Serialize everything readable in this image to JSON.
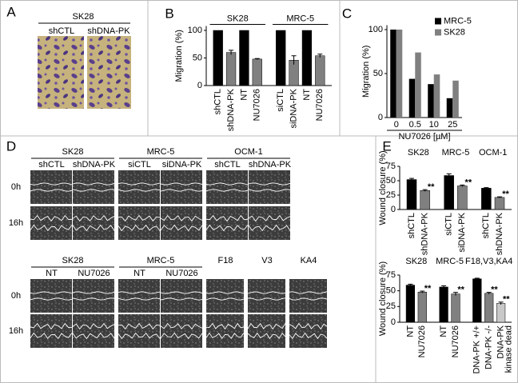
{
  "panel_labels": [
    "A",
    "B",
    "C",
    "D",
    "E"
  ],
  "panel_a": {
    "cell_line": "SK28",
    "conditions": [
      "shCTL",
      "shDNA-PK"
    ]
  },
  "panel_d": {
    "rows": [
      "0h",
      "16h"
    ],
    "top": [
      {
        "name": "SK28",
        "conditions": [
          "shCTL",
          "shDNA-PK"
        ]
      },
      {
        "name": "MRC-5",
        "conditions": [
          "siCTL",
          "siDNA-PK"
        ]
      },
      {
        "name": "OCM-1",
        "conditions": [
          "shCTL",
          "shDNA-PK"
        ]
      }
    ],
    "bottom": [
      {
        "name": "SK28",
        "conditions": [
          "NT",
          "NU7026"
        ]
      },
      {
        "name": "MRC-5",
        "conditions": [
          "NT",
          "NU7026"
        ]
      },
      {
        "name": "F18",
        "conditions": []
      },
      {
        "name": "V3",
        "conditions": []
      },
      {
        "name": "KA4",
        "conditions": []
      }
    ]
  },
  "chart_data": [
    {
      "type": "grouped-bar",
      "y_label": "Migration (%)",
      "ylim": [
        0,
        108
      ],
      "yticks": [
        0,
        50,
        100
      ],
      "groups": [
        {
          "name": "SK28",
          "categories": [
            "shCTL",
            "shDNA-PK",
            "NT",
            "NU7026"
          ],
          "values": [
            100,
            60,
            100,
            48
          ],
          "errors": [
            null,
            4,
            null,
            1
          ],
          "colors": [
            "#000000",
            "#808080",
            "#000000",
            "#808080"
          ]
        },
        {
          "name": "MRC-5",
          "categories": [
            "siCTL",
            "siDNA-PK",
            "NT",
            "NU7026"
          ],
          "values": [
            100,
            46,
            100,
            54
          ],
          "errors": [
            null,
            8,
            null,
            3
          ],
          "colors": [
            "#000000",
            "#808080",
            "#000000",
            "#808080"
          ]
        }
      ]
    },
    {
      "type": "bar",
      "y_label": "Migration (%)",
      "x_label": "NU7026 [µM]",
      "ylim": [
        0,
        105
      ],
      "yticks": [
        0,
        50,
        100
      ],
      "categories": [
        "0",
        "0.5",
        "10",
        "25"
      ],
      "legend": "upper right",
      "series": [
        {
          "name": "MRC-5",
          "color": "#000000",
          "values": [
            100,
            44,
            38,
            22
          ]
        },
        {
          "name": "SK28",
          "color": "#808080",
          "values": [
            100,
            74,
            49,
            42
          ]
        }
      ]
    },
    {
      "type": "grouped-bar",
      "y_label": "Wound closure (%)",
      "ylim": [
        0,
        75
      ],
      "yticks": [
        0,
        25,
        50,
        75
      ],
      "groups": [
        {
          "name": "SK28",
          "categories": [
            "shCTL",
            "shDNA-PK"
          ],
          "values": [
            52,
            33
          ],
          "errors": [
            2,
            1.5
          ],
          "colors": [
            "#000000",
            "#808080"
          ],
          "annotations": [
            null,
            "**"
          ]
        },
        {
          "name": "MRC-5",
          "categories": [
            "siCTL",
            "siDNA-PK"
          ],
          "values": [
            59,
            41
          ],
          "errors": [
            3,
            1.5
          ],
          "colors": [
            "#000000",
            "#808080"
          ],
          "annotations": [
            null,
            "**"
          ]
        },
        {
          "name": "OCM-1",
          "categories": [
            "shCTL",
            "shDNA-PK"
          ],
          "values": [
            37,
            21
          ],
          "errors": [
            1,
            1
          ],
          "colors": [
            "#000000",
            "#808080"
          ],
          "annotations": [
            null,
            "**"
          ]
        }
      ]
    },
    {
      "type": "grouped-bar",
      "y_label": "Wound closure (%)",
      "ylim": [
        0,
        75
      ],
      "yticks": [
        0,
        25,
        50,
        75
      ],
      "groups": [
        {
          "name": "SK28",
          "categories": [
            "NT",
            "NU7026"
          ],
          "values": [
            59,
            48
          ],
          "errors": [
            1.5,
            1.5
          ],
          "colors": [
            "#000000",
            "#808080"
          ],
          "annotations": [
            null,
            "**"
          ]
        },
        {
          "name": "MRC-5",
          "categories": [
            "NT",
            "NU7026"
          ],
          "values": [
            56,
            45
          ],
          "errors": [
            2,
            2.5
          ],
          "colors": [
            "#000000",
            "#808080"
          ],
          "annotations": [
            null,
            "**"
          ]
        },
        {
          "name": "F18,V3,KA4",
          "categories": [
            "DNA-PK +/+",
            "DNA-PK -/-",
            "DNA-PK"
          ],
          "sublabels": [
            null,
            null,
            "kinase dead"
          ],
          "values": [
            69,
            46,
            30
          ],
          "errors": [
            1,
            1.5,
            2
          ],
          "colors": [
            "#000000",
            "#808080",
            "#c8c8c8"
          ],
          "annotations": [
            null,
            "**",
            "**"
          ]
        }
      ]
    }
  ]
}
